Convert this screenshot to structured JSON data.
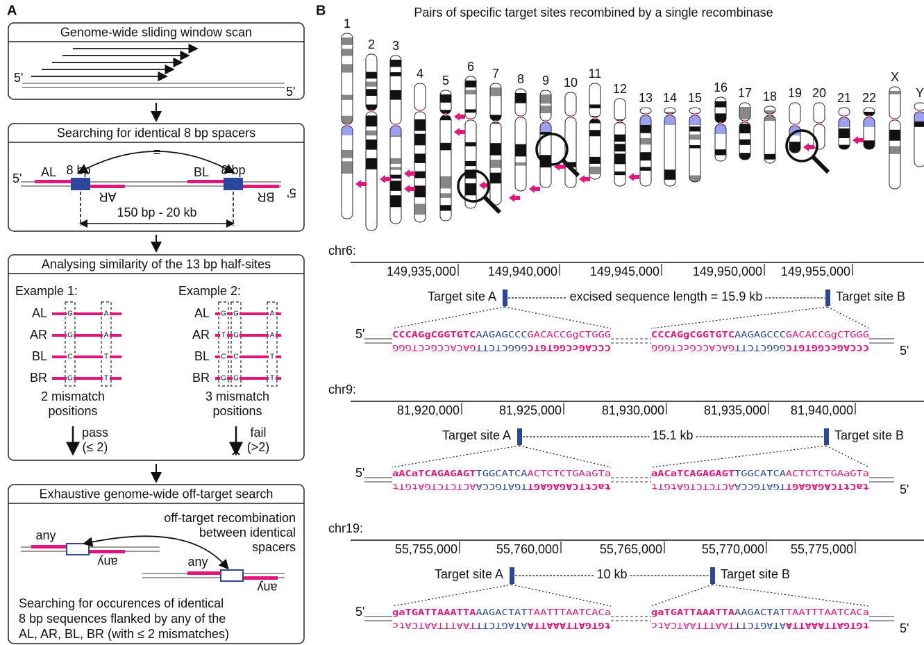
{
  "panel_a": {
    "label": "A",
    "step1": {
      "title": "Genome-wide sliding window scan",
      "five_prime_left": "5'",
      "five_prime_right": "5'"
    },
    "step2": {
      "title": "Searching for identical 8 bp spacers",
      "equals": "=",
      "al": "AL",
      "spacer_left": "8 bp",
      "ar": "AR",
      "bl": "BL",
      "spacer_right": "8 bp",
      "br": "BR",
      "five_prime_left": "5'",
      "five_prime_right": "5'",
      "distance": "150 bp - 20 kb"
    },
    "step3": {
      "title": "Analysing similarity of the 13 bp half-sites",
      "examples": [
        {
          "title": "Example 1:",
          "rows": [
            {
              "name": "AL",
              "bases": [
                "G",
                "A"
              ]
            },
            {
              "name": "AR",
              "bases": [
                "G",
                "A"
              ]
            },
            {
              "name": "BL",
              "bases": [
                "C",
                "T"
              ]
            },
            {
              "name": "BR",
              "bases": [
                "G",
                "T"
              ]
            }
          ],
          "result": [
            "2 mismatch",
            "positions"
          ],
          "decision": "pass",
          "criterion": "(≤ 2)"
        },
        {
          "title": "Example 2:",
          "rows": [
            {
              "name": "AL",
              "bases": [
                "G",
                "G",
                "A"
              ]
            },
            {
              "name": "AR",
              "bases": [
                "T",
                "G",
                "A"
              ]
            },
            {
              "name": "BL",
              "bases": [
                "C",
                "C",
                "T"
              ]
            },
            {
              "name": "BR",
              "bases": [
                "G",
                "G",
                "T"
              ]
            }
          ],
          "result": [
            "3 mismatch",
            "positions"
          ],
          "decision": "fail",
          "criterion": "(>2)"
        }
      ]
    },
    "step4": {
      "title": "Exhaustive genome-wide off-target search",
      "note": [
        "off-target recombination",
        "between identical",
        "spacers"
      ],
      "any": [
        "any",
        "any",
        "any",
        "any"
      ],
      "description": [
        "Searching for occurences of identical",
        "8 bp sequences flanked by any of the",
        "AL, AR, BL, BR (with ≤ 2 mismatches)"
      ]
    }
  },
  "panel_b": {
    "label": "B",
    "title": "Pairs of specific target sites recombined by a single recombinase",
    "chromosomes": [
      "1",
      "2",
      "3",
      "4",
      "5",
      "6",
      "7",
      "8",
      "9",
      "10",
      "11",
      "12",
      "13",
      "14",
      "15",
      "16",
      "17",
      "18",
      "19",
      "20",
      "21",
      "22",
      "X",
      "Y"
    ],
    "loci": [
      {
        "chromosome": "chr6:",
        "ticks": [
          "149,935,000",
          "149,940,000",
          "149,945,000",
          "149,950,000",
          "149,955,000"
        ],
        "site_a": "Target site A",
        "distance": "excised sequence length = 15.9 kb",
        "site_b": "Target site B",
        "top_strand": [
          "CCCAGgCGGTGTC",
          "AAGAGCCC",
          "GACACCGgCTGGG"
        ],
        "bottom_strand": [
          "CCCAGcCGGTGTC",
          "GGGCTCTT",
          "GACACCGcCTGGG"
        ],
        "five_prime_top": "5'",
        "five_prime_bottom": "5'"
      },
      {
        "chromosome": "chr9:",
        "ticks": [
          "81,920,000",
          "81,925,000",
          "81,930,000",
          "81,935,000",
          "81,940,000"
        ],
        "site_a": "Target site A",
        "distance": "15.1 kb",
        "site_b": "Target site B",
        "top_strand": [
          "aACaTCAGAGAGT",
          "TGGCATCA",
          "ACTCTCTGAaGTa"
        ],
        "bottom_strand": [
          "taCtTCAGAGAGT",
          "TGATGCCA",
          "ACTCTCTGAtGTt"
        ],
        "five_prime_top": "5'",
        "five_prime_bottom": "5'"
      },
      {
        "chromosome": "chr19:",
        "ticks": [
          "55,755,000",
          "55,760,000",
          "55,765,000",
          "55,770,000",
          "55,775,000"
        ],
        "site_a": "Target site A",
        "distance": "10 kb",
        "site_b": "Target site B",
        "top_strand": [
          "gaTGATTAAATTA",
          "AAGACTAT",
          "TAATTTAATCACa"
        ],
        "bottom_strand": [
          "tGTGATTAAATTA",
          "ATAGTCTT",
          "TAATTTAATCAtc"
        ],
        "five_prime_top": "5'",
        "five_prime_bottom": "5'"
      }
    ]
  }
}
